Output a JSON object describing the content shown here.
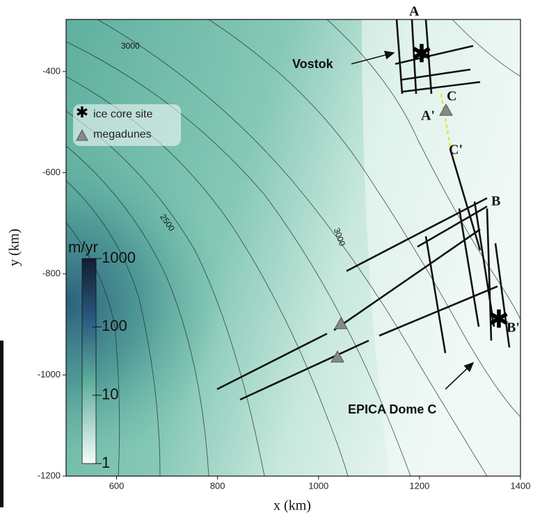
{
  "map": {
    "xlabel": "x (km)",
    "ylabel": "y (km)",
    "xlim": [
      500,
      1400
    ],
    "ylim": [
      -1200,
      -297
    ],
    "xticks": [
      600,
      800,
      1000,
      1200,
      1400
    ],
    "yticks": [
      -400,
      -600,
      -800,
      -1000,
      -1200
    ],
    "colorbar": {
      "label": "m/yr",
      "scale": "log",
      "lim": [
        1,
        1000
      ],
      "ticks": [
        1000,
        100,
        10,
        1
      ]
    },
    "legend": [
      "ice core site",
      "megadunes"
    ],
    "sites": [
      "Vostok",
      "EPICA Dome C"
    ],
    "profile_labels": [
      "A",
      "A'",
      "B",
      "B'",
      "C",
      "C'"
    ],
    "contour_labels": [
      "3000",
      "2500",
      "3000"
    ]
  }
}
